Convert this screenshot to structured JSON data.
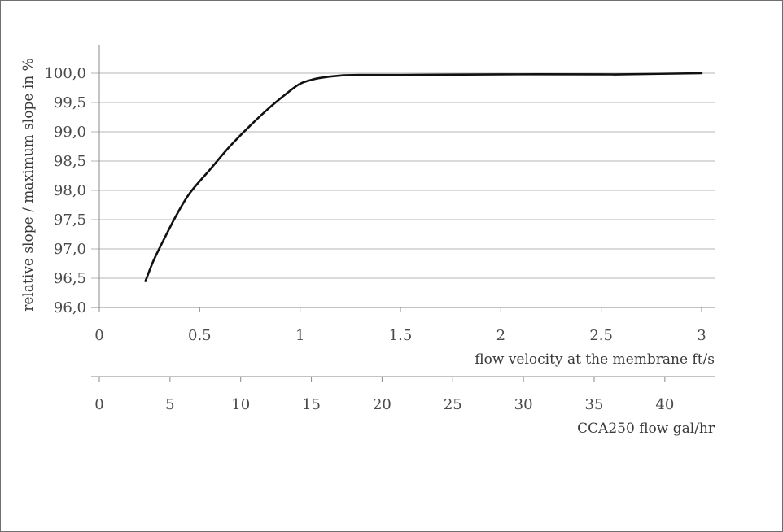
{
  "chart_data": {
    "type": "line",
    "ylabel": "relative slope / maximum slope in %",
    "xlabel": "flow velocity at the membrane ft/s",
    "x2label": "CCA250 flow gal/hr",
    "ylim": [
      96.0,
      100.0
    ],
    "xlim": [
      0,
      3
    ],
    "x2lim": [
      0,
      42.6
    ],
    "yticks": [
      "96,0",
      "96,5",
      "97,0",
      "97,5",
      "98,0",
      "98,5",
      "99,0",
      "99,5",
      "100,0"
    ],
    "ytick_values": [
      96.0,
      96.5,
      97.0,
      97.5,
      98.0,
      98.5,
      99.0,
      99.5,
      100.0
    ],
    "xticks": [
      "0",
      "0.5",
      "1",
      "1.5",
      "2",
      "2.5",
      "3"
    ],
    "xtick_values": [
      0,
      0.5,
      1,
      1.5,
      2,
      2.5,
      3
    ],
    "x2ticks": [
      "0",
      "5",
      "10",
      "15",
      "20",
      "25",
      "30",
      "35",
      "40"
    ],
    "x2tick_values": [
      0,
      5,
      10,
      15,
      20,
      25,
      30,
      35,
      40
    ],
    "grid": true,
    "series": [
      {
        "color": "#111111",
        "x": [
          0.23,
          0.27,
          0.32,
          0.38,
          0.45,
          0.55,
          0.65,
          0.75,
          0.85,
          0.95,
          1.0,
          1.05,
          1.1,
          1.2,
          1.3,
          1.5,
          2.0,
          2.5,
          2.6,
          3.0
        ],
        "y": [
          96.45,
          96.8,
          97.15,
          97.55,
          97.95,
          98.35,
          98.75,
          99.1,
          99.42,
          99.7,
          99.82,
          99.88,
          99.92,
          99.96,
          99.97,
          99.97,
          99.98,
          99.98,
          99.98,
          100.0
        ]
      }
    ]
  }
}
